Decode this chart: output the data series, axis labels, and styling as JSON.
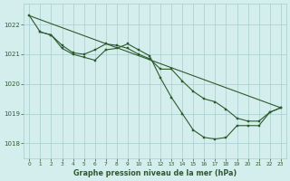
{
  "title": "Graphe pression niveau de la mer (hPa)",
  "background_color": "#d4eeed",
  "grid_color": "#a8cccc",
  "line_color": "#2d5a2d",
  "xlim": [
    -0.5,
    23.5
  ],
  "ylim": [
    1017.5,
    1022.7
  ],
  "yticks": [
    1018,
    1019,
    1020,
    1021,
    1022
  ],
  "xticks": [
    0,
    1,
    2,
    3,
    4,
    5,
    6,
    7,
    8,
    9,
    10,
    11,
    12,
    13,
    14,
    15,
    16,
    17,
    18,
    19,
    20,
    21,
    22,
    23
  ],
  "series": [
    {
      "x": [
        0,
        1,
        2,
        3,
        23
      ],
      "y": [
        1022.3,
        1021.75,
        1021.6,
        1021.3,
        1019.2
      ],
      "marker": false,
      "straight": true
    },
    {
      "x": [
        0,
        1,
        2,
        3,
        4,
        5,
        6,
        7,
        8,
        9,
        10,
        11,
        12,
        13,
        14,
        15,
        16,
        17,
        18,
        19,
        20,
        21,
        22,
        23
      ],
      "y": [
        1022.3,
        1021.75,
        1021.65,
        1021.3,
        1021.05,
        1021.0,
        1021.15,
        1021.35,
        1021.3,
        1021.2,
        1021.0,
        1020.85,
        1020.5,
        1020.5,
        1020.1,
        1019.75,
        1019.5,
        1019.4,
        1019.15,
        1018.85,
        1018.75,
        1018.75,
        1019.05,
        1019.2
      ],
      "marker": true
    },
    {
      "x": [
        1,
        2,
        3,
        4,
        5,
        6,
        7,
        8,
        9,
        10,
        11,
        12,
        13,
        14,
        15,
        16,
        17,
        18,
        19,
        20,
        21,
        22,
        23
      ],
      "y": [
        1021.75,
        1021.65,
        1021.2,
        1021.0,
        1020.9,
        1020.8,
        1021.15,
        1021.2,
        1021.35,
        1021.15,
        1020.95,
        1020.2,
        1019.55,
        1019.0,
        1018.45,
        1018.2,
        1018.15,
        1018.2,
        1018.6,
        1018.6,
        1018.6,
        1019.05,
        1019.2
      ],
      "marker": true
    }
  ]
}
